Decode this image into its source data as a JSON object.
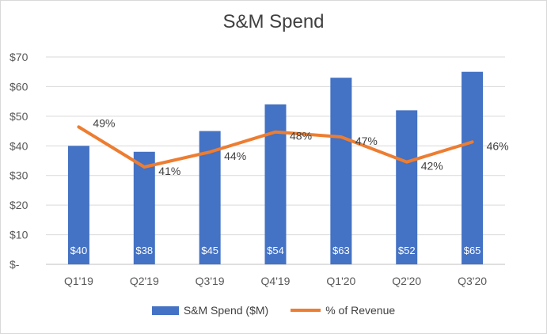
{
  "chart_data": {
    "type": "bar",
    "title": "S&M Spend",
    "categories": [
      "Q1'19",
      "Q2'19",
      "Q3'19",
      "Q4'19",
      "Q1'20",
      "Q2'20",
      "Q3'20"
    ],
    "series": [
      {
        "name": "S&M Spend ($M)",
        "type": "bar",
        "color": "#4472c4",
        "values": [
          40,
          38,
          45,
          54,
          63,
          52,
          65
        ],
        "data_labels": [
          "$40",
          "$38",
          "$45",
          "$54",
          "$63",
          "$52",
          "$65"
        ]
      },
      {
        "name": "% of Revenue",
        "type": "line",
        "color": "#ed7d31",
        "values": [
          49,
          41,
          44,
          48,
          47,
          42,
          46
        ],
        "data_labels": [
          "49%",
          "41%",
          "44%",
          "48%",
          "47%",
          "42%",
          "46%"
        ]
      }
    ],
    "yaxis": {
      "ylim": [
        0,
        70
      ],
      "ticks": [
        0,
        10,
        20,
        30,
        40,
        50,
        60,
        70
      ],
      "tick_labels": [
        "$-",
        "$10",
        "$20",
        "$30",
        "$40",
        "$50",
        "$60",
        "$70"
      ]
    },
    "grid": true,
    "legend": "bottom"
  }
}
